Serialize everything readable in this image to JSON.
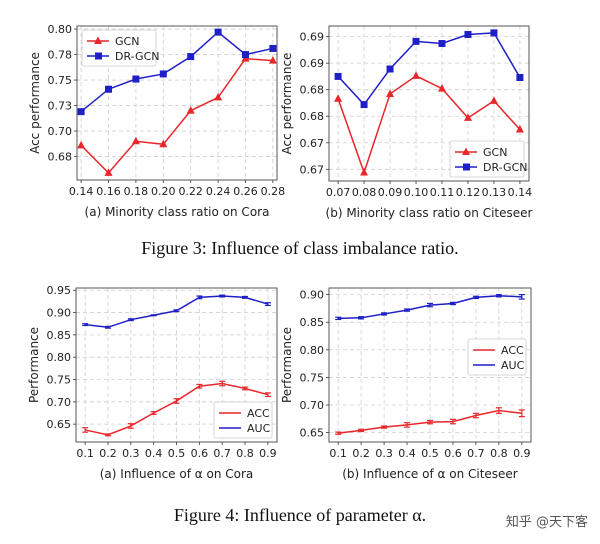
{
  "figure3_caption": "Figure 3: Influence of class imbalance ratio.",
  "figure4_caption": "Figure 4: Influence of parameter α.",
  "watermark": "知乎 @天下客",
  "chart_data": [
    {
      "type": "line",
      "subtitle": "(a) Minority class ratio on Cora",
      "ylabel": "Acc performance",
      "x": [
        0.14,
        0.16,
        0.18,
        0.2,
        0.22,
        0.24,
        0.26,
        0.28
      ],
      "xticks": [
        "0.14",
        "0.16",
        "0.18",
        "0.20",
        "0.22",
        "0.24",
        "0.26",
        "0.28"
      ],
      "yticks": [
        0.675,
        0.7,
        0.725,
        0.75,
        0.775,
        0.8
      ],
      "ytick_labels": [
        "0.68",
        "0.70",
        "0.73",
        "0.75",
        "0.78",
        "0.80"
      ],
      "ylim": [
        0.652,
        0.803
      ],
      "xlim": [
        0.137,
        0.283
      ],
      "grid": true,
      "legend": "top-left",
      "series": [
        {
          "name": "GCN",
          "color": "#e8262b",
          "marker": "triangle",
          "values": [
            0.686,
            0.659,
            0.69,
            0.687,
            0.72,
            0.733,
            0.771,
            0.769
          ]
        },
        {
          "name": "DR-GCN",
          "color": "#1f1fc8",
          "marker": "square",
          "values": [
            0.719,
            0.741,
            0.751,
            0.756,
            0.773,
            0.797,
            0.775,
            0.781
          ]
        }
      ]
    },
    {
      "type": "line",
      "subtitle": "(b) Minority class ratio on Citeseer",
      "ylabel": "Acc performance",
      "x": [
        0.07,
        0.08,
        0.09,
        0.1,
        0.11,
        0.12,
        0.13,
        0.14
      ],
      "xticks": [
        "0.07",
        "0.08",
        "0.09",
        "0.10",
        "0.11",
        "0.12",
        "0.13",
        "0.14"
      ],
      "yticks": [
        0.665,
        0.67,
        0.675,
        0.68,
        0.685,
        0.69
      ],
      "ytick_labels": [
        "0.67",
        "0.67",
        "0.68",
        "0.68",
        "0.69",
        "0.69"
      ],
      "ylim": [
        0.6628,
        0.692
      ],
      "xlim": [
        0.0665,
        0.1435
      ],
      "grid": true,
      "legend": "bottom-right",
      "series": [
        {
          "name": "GCN",
          "color": "#e8262b",
          "marker": "triangle",
          "values": [
            0.6783,
            0.6644,
            0.6792,
            0.6826,
            0.6802,
            0.6747,
            0.6779,
            0.6725
          ]
        },
        {
          "name": "DR-GCN",
          "color": "#1f1fc8",
          "marker": "square",
          "values": [
            0.6825,
            0.6772,
            0.6839,
            0.6891,
            0.6887,
            0.6904,
            0.6907,
            0.6823
          ]
        }
      ]
    },
    {
      "type": "line",
      "subtitle": "(a) Influence of α on Cora",
      "ylabel": "Performance",
      "x": [
        0.1,
        0.2,
        0.3,
        0.4,
        0.5,
        0.6,
        0.7,
        0.8,
        0.9
      ],
      "xticks": [
        "0.1",
        "0.2",
        "0.3",
        "0.4",
        "0.5",
        "0.6",
        "0.7",
        "0.8",
        "0.9"
      ],
      "yticks": [
        0.65,
        0.7,
        0.75,
        0.8,
        0.85,
        0.9,
        0.95
      ],
      "ytick_labels": [
        "0.65",
        "0.70",
        "0.75",
        "0.80",
        "0.85",
        "0.90",
        "0.95"
      ],
      "ylim": [
        0.61,
        0.955
      ],
      "xlim": [
        0.06,
        0.94
      ],
      "grid": true,
      "legend": "bottom-right",
      "series": [
        {
          "name": "ACC",
          "color": "#e8262b",
          "marker": "none",
          "values": [
            0.637,
            0.626,
            0.646,
            0.675,
            0.702,
            0.735,
            0.741,
            0.73,
            0.716
          ],
          "error": [
            0.005,
            0.002,
            0.005,
            0.003,
            0.005,
            0.004,
            0.005,
            0.003,
            0.004
          ]
        },
        {
          "name": "AUC",
          "color": "#1f1fc8",
          "marker": "none",
          "values": [
            0.873,
            0.867,
            0.884,
            0.894,
            0.904,
            0.934,
            0.937,
            0.934,
            0.919
          ],
          "error": [
            0.002,
            0.002,
            0.002,
            0.001,
            0.002,
            0.003,
            0.002,
            0.002,
            0.003
          ]
        }
      ]
    },
    {
      "type": "line",
      "subtitle": "(b) Influence of α on Citeseer",
      "ylabel": "Performance",
      "x": [
        0.1,
        0.2,
        0.3,
        0.4,
        0.5,
        0.6,
        0.7,
        0.8,
        0.9
      ],
      "xticks": [
        "0.1",
        "0.2",
        "0.3",
        "0.4",
        "0.5",
        "0.6",
        "0.7",
        "0.8",
        "0.9"
      ],
      "yticks": [
        0.65,
        0.7,
        0.75,
        0.8,
        0.85,
        0.9
      ],
      "ytick_labels": [
        "0.65",
        "0.70",
        "0.75",
        "0.80",
        "0.85",
        "0.90"
      ],
      "ylim": [
        0.633,
        0.912
      ],
      "xlim": [
        0.06,
        0.94
      ],
      "grid": true,
      "legend": "center-right",
      "series": [
        {
          "name": "ACC",
          "color": "#e8262b",
          "marker": "none",
          "values": [
            0.649,
            0.654,
            0.66,
            0.664,
            0.669,
            0.67,
            0.681,
            0.69,
            0.685
          ],
          "error": [
            0.002,
            0.002,
            0.002,
            0.004,
            0.003,
            0.004,
            0.004,
            0.005,
            0.006
          ]
        },
        {
          "name": "AUC",
          "color": "#1f1fc8",
          "marker": "none",
          "values": [
            0.857,
            0.858,
            0.865,
            0.872,
            0.881,
            0.884,
            0.895,
            0.898,
            0.896
          ],
          "error": [
            0.002,
            0.002,
            0.002,
            0.002,
            0.003,
            0.002,
            0.002,
            0.002,
            0.004
          ]
        }
      ]
    }
  ]
}
